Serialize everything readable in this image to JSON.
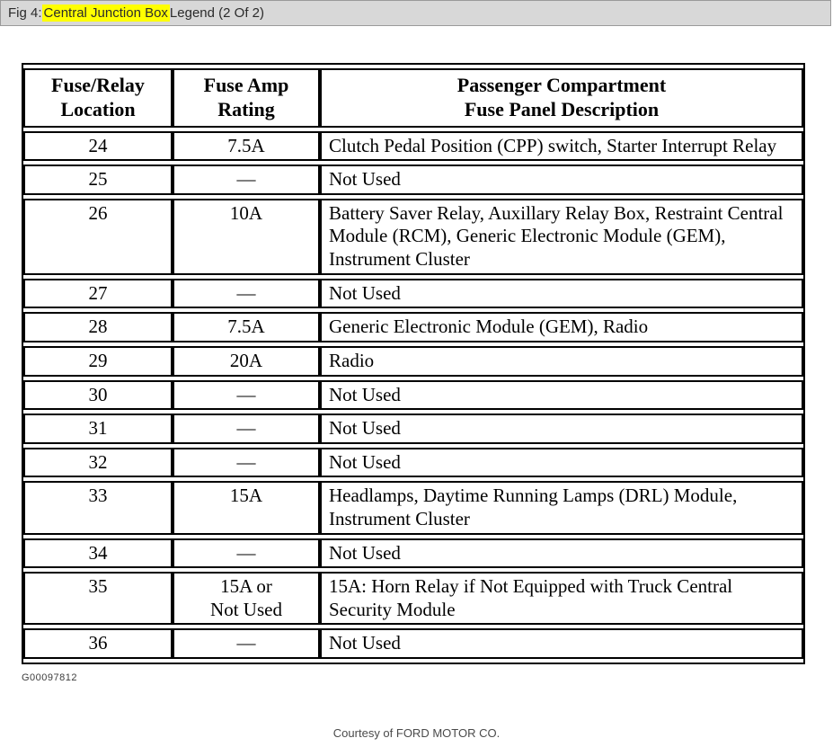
{
  "caption": {
    "prefix": "Fig 4: ",
    "highlight": "Central Junction Box",
    "suffix": " Legend (2 Of 2)"
  },
  "table": {
    "columns": [
      "Fuse/Relay\nLocation",
      "Fuse Amp\nRating",
      "Passenger Compartment\nFuse Panel Description"
    ],
    "rows": [
      {
        "location": "24",
        "rating": "7.5A",
        "description": "Clutch Pedal Position (CPP) switch, Starter Interrupt Relay"
      },
      {
        "location": "25",
        "rating": "—",
        "description": "Not Used"
      },
      {
        "location": "26",
        "rating": "10A",
        "description": "Battery Saver Relay, Auxillary Relay Box, Restraint Central Module (RCM), Generic Electronic Module (GEM), Instrument Cluster"
      },
      {
        "location": "27",
        "rating": "—",
        "description": "Not Used"
      },
      {
        "location": "28",
        "rating": "7.5A",
        "description": "Generic Electronic Module (GEM), Radio"
      },
      {
        "location": "29",
        "rating": "20A",
        "description": "Radio"
      },
      {
        "location": "30",
        "rating": "—",
        "description": "Not Used"
      },
      {
        "location": "31",
        "rating": "—",
        "description": "Not Used"
      },
      {
        "location": "32",
        "rating": "—",
        "description": "Not Used"
      },
      {
        "location": "33",
        "rating": "15A",
        "description": "Headlamps, Daytime Running Lamps (DRL) Module, Instrument Cluster"
      },
      {
        "location": "34",
        "rating": "—",
        "description": "Not Used"
      },
      {
        "location": "35",
        "rating": "15A or\nNot Used",
        "description": "15A: Horn Relay if Not Equipped with Truck Central Security Module"
      },
      {
        "location": "36",
        "rating": "—",
        "description": "Not Used"
      }
    ]
  },
  "footer": {
    "figure_id": "G00097812",
    "courtesy": "Courtesy of FORD MOTOR CO."
  },
  "colors": {
    "highlight": "#ffff00",
    "caption_bar_bg": "#d8d8d8",
    "table_border": "#000000"
  }
}
